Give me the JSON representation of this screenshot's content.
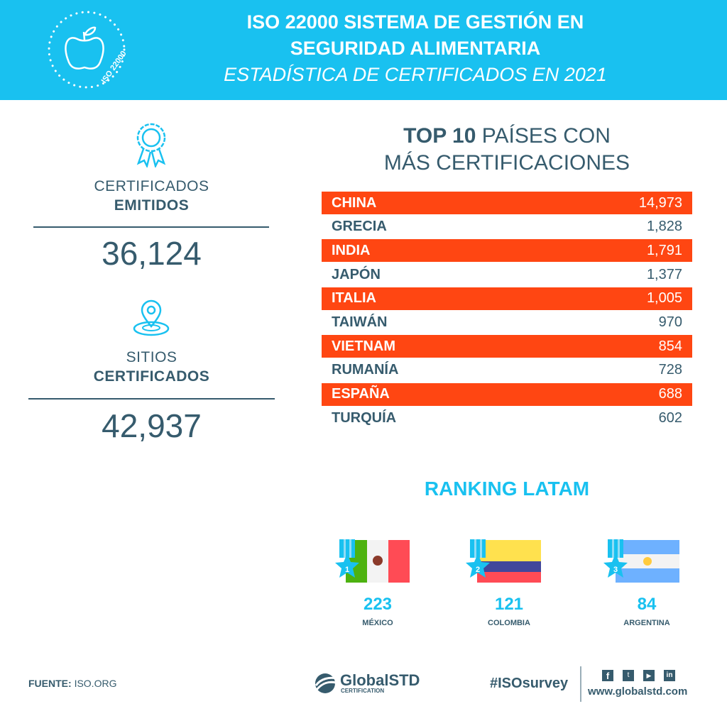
{
  "header": {
    "title_line1": "ISO 22000 SISTEMA DE GESTIÓN EN",
    "title_line2": "SEGURIDAD ALIMENTARIA",
    "subtitle": "ESTADÍSTICA DE CERTIFICADOS EN 2021",
    "badge_text": "ISO 22000"
  },
  "stats": [
    {
      "label": "CERTIFICADOS",
      "label_bold": "EMITIDOS",
      "value": "36,124",
      "icon": "award-ribbon-icon"
    },
    {
      "label": "SITIOS",
      "label_bold": "CERTIFICADOS",
      "value": "42,937",
      "icon": "location-pin-icon"
    }
  ],
  "top10": {
    "title_bold": "TOP 10",
    "title_rest": "PAÍSES CON",
    "title_line2": "MÁS CERTIFICACIONES",
    "rows": [
      {
        "country": "CHINA",
        "value": "14,973"
      },
      {
        "country": "GRECIA",
        "value": "1,828"
      },
      {
        "country": "INDIA",
        "value": "1,791"
      },
      {
        "country": "JAPÓN",
        "value": "1,377"
      },
      {
        "country": "ITALIA",
        "value": "1,005"
      },
      {
        "country": "TAIWÁN",
        "value": "970"
      },
      {
        "country": "VIETNAM",
        "value": "854"
      },
      {
        "country": "RUMANÍA",
        "value": "728"
      },
      {
        "country": "ESPAÑA",
        "value": "688"
      },
      {
        "country": "TURQUÍA",
        "value": "602"
      }
    ]
  },
  "latam": {
    "title": "RANKING LATAM",
    "items": [
      {
        "rank": "1",
        "value": "223",
        "country": "MÉXICO"
      },
      {
        "rank": "2",
        "value": "121",
        "country": "COLOMBIA"
      },
      {
        "rank": "3",
        "value": "84",
        "country": "ARGENTINA"
      }
    ]
  },
  "footer": {
    "source_label": "FUENTE:",
    "source": "ISO.ORG",
    "logo_main": "GlobalSTD",
    "logo_sub": "CERTIFICATION",
    "hashtag": "#ISOsurvey",
    "website": "www.globalstd.com",
    "social": [
      "facebook-icon",
      "twitter-icon",
      "youtube-icon",
      "linkedin-icon"
    ]
  },
  "colors": {
    "primary": "#19c1f0",
    "dark": "#365b6d",
    "highlight": "#ff4612"
  }
}
